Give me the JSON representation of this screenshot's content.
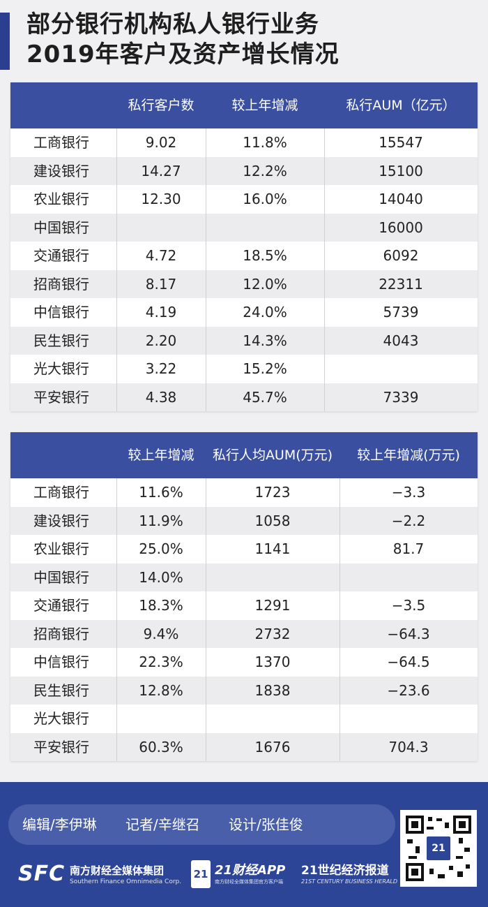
{
  "title": {
    "line1": "部分银行机构私人银行业务",
    "line2": "2019年客户及资产增长情况"
  },
  "table1": {
    "headers": [
      "",
      "私行客户数",
      "较上年增减",
      "私行AUM（亿元）"
    ],
    "rows": [
      [
        "工商银行",
        "9.02",
        "11.8%",
        "15547"
      ],
      [
        "建设银行",
        "14.27",
        "12.2%",
        "15100"
      ],
      [
        "农业银行",
        "12.30",
        "16.0%",
        "14040"
      ],
      [
        "中国银行",
        "",
        "",
        "16000"
      ],
      [
        "交通银行",
        "4.72",
        "18.5%",
        "6092"
      ],
      [
        "招商银行",
        "8.17",
        "12.0%",
        "22311"
      ],
      [
        "中信银行",
        "4.19",
        "24.0%",
        "5739"
      ],
      [
        "民生银行",
        "2.20",
        "14.3%",
        "4043"
      ],
      [
        "光大银行",
        "3.22",
        "15.2%",
        ""
      ],
      [
        "平安银行",
        "4.38",
        "45.7%",
        "7339"
      ]
    ]
  },
  "table2": {
    "headers": [
      "",
      "较上年增减",
      "私行人均AUM(万元)",
      "较上年增减(万元)"
    ],
    "rows": [
      [
        "工商银行",
        "11.6%",
        "1723",
        "−3.3"
      ],
      [
        "建设银行",
        "11.9%",
        "1058",
        "−2.2"
      ],
      [
        "农业银行",
        "25.0%",
        "1141",
        "81.7"
      ],
      [
        "中国银行",
        "14.0%",
        "",
        ""
      ],
      [
        "交通银行",
        "18.3%",
        "1291",
        "−3.5"
      ],
      [
        "招商银行",
        "9.4%",
        "2732",
        "−64.3"
      ],
      [
        "中信银行",
        "22.3%",
        "1370",
        "−64.5"
      ],
      [
        "民生银行",
        "12.8%",
        "1838",
        "−23.6"
      ],
      [
        "光大银行",
        "",
        "",
        ""
      ],
      [
        "平安银行",
        "60.3%",
        "1676",
        "704.3"
      ]
    ]
  },
  "footer": {
    "editor": "编辑/李伊琳",
    "reporter": "记者/辛继召",
    "designer": "设计/张佳俊",
    "sfc_logo": "SFC",
    "sfc_cn": "南方财经全媒体集团",
    "sfc_en": "Southern Finance Omnimedia Corp.",
    "app_badge": "21",
    "app_title": "21财经APP",
    "app_sub": "南方财经全媒体集团官方客户端",
    "herald_cn": "21世纪经济报道",
    "herald_en": "21ST CENTURY BUSINESS HERALD",
    "qr_badge": "21"
  }
}
